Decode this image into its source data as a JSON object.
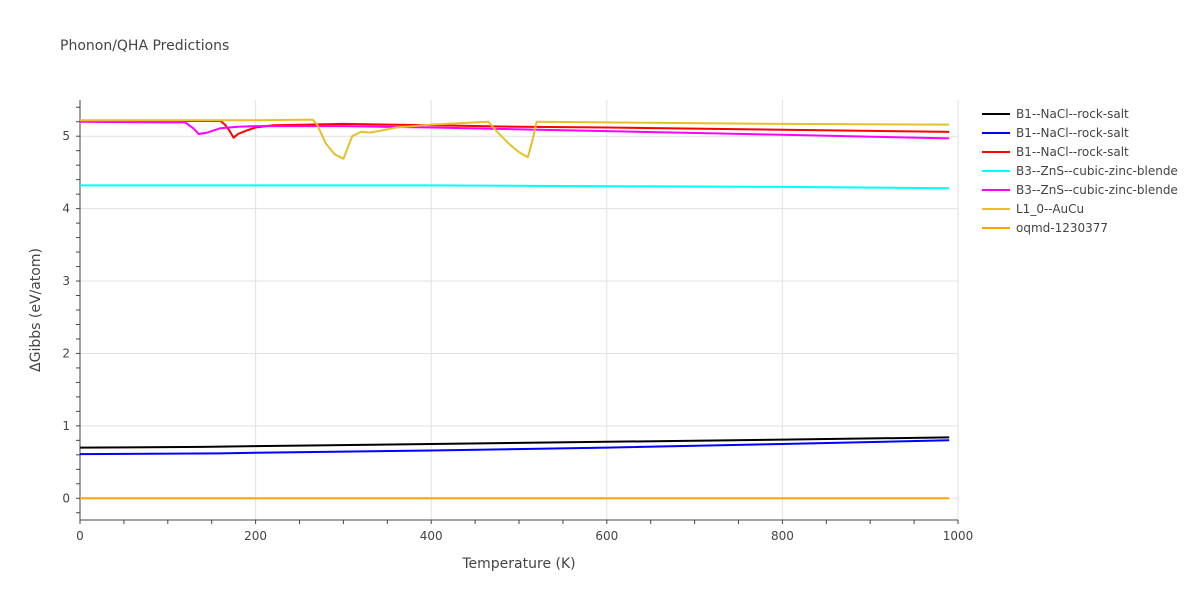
{
  "chart_data": {
    "type": "line",
    "title": "Phonon/QHA Predictions",
    "xlabel": "Temperature (K)",
    "ylabel": "ΔGibbs (eV/atom)",
    "xlim": [
      0,
      1000
    ],
    "ylim": [
      -0.3,
      5.5
    ],
    "xticks": [
      0,
      200,
      400,
      600,
      800,
      1000
    ],
    "yticks": [
      0,
      1,
      2,
      3,
      4,
      5
    ],
    "grid": true,
    "legend_position": "right",
    "series": [
      {
        "name": "B1--NaCl--rock-salt",
        "color": "#000000",
        "x": [
          0,
          140,
          200,
          400,
          600,
          800,
          990
        ],
        "y": [
          0.7,
          0.71,
          0.72,
          0.75,
          0.78,
          0.81,
          0.84
        ]
      },
      {
        "name": "B1--NaCl--rock-salt",
        "color": "#0000ff",
        "x": [
          0,
          160,
          200,
          400,
          600,
          800,
          990
        ],
        "y": [
          0.61,
          0.62,
          0.63,
          0.66,
          0.7,
          0.75,
          0.8
        ]
      },
      {
        "name": "B1--NaCl--rock-salt",
        "color": "#ff0000",
        "x": [
          0,
          120,
          160,
          165,
          170,
          175,
          180,
          190,
          200,
          220,
          260,
          300,
          400,
          500,
          600,
          800,
          990
        ],
        "y": [
          5.21,
          5.21,
          5.21,
          5.16,
          5.08,
          4.98,
          5.03,
          5.08,
          5.12,
          5.15,
          5.16,
          5.17,
          5.15,
          5.13,
          5.12,
          5.09,
          5.06
        ]
      },
      {
        "name": "B3--ZnS--cubic-zinc-blende",
        "color": "#00ffff",
        "x": [
          0,
          200,
          400,
          600,
          800,
          990
        ],
        "y": [
          4.32,
          4.32,
          4.32,
          4.31,
          4.3,
          4.28
        ]
      },
      {
        "name": "B3--ZnS--cubic-zinc-blende",
        "color": "#ff00ff",
        "x": [
          0,
          100,
          120,
          130,
          135,
          145,
          160,
          180,
          200,
          260,
          300,
          400,
          600,
          800,
          990
        ],
        "y": [
          5.2,
          5.19,
          5.19,
          5.1,
          5.03,
          5.05,
          5.11,
          5.13,
          5.14,
          5.14,
          5.14,
          5.12,
          5.07,
          5.02,
          4.97
        ]
      },
      {
        "name": "L1_0--AuCu",
        "color": "#e6c029",
        "x": [
          0,
          100,
          200,
          265,
          270,
          280,
          290,
          300,
          310,
          320,
          330,
          340,
          360,
          400,
          465,
          470,
          480,
          490,
          500,
          510,
          515,
          520,
          600,
          800,
          990
        ],
        "y": [
          5.22,
          5.22,
          5.22,
          5.23,
          5.16,
          4.9,
          4.75,
          4.69,
          5.0,
          5.06,
          5.05,
          5.07,
          5.12,
          5.16,
          5.2,
          5.13,
          5.0,
          4.88,
          4.78,
          4.71,
          4.93,
          5.2,
          5.19,
          5.17,
          5.16
        ]
      },
      {
        "name": "oqmd-1230377",
        "color": "#ffa500",
        "x": [
          0,
          200,
          400,
          600,
          800,
          990
        ],
        "y": [
          0.0,
          0.0,
          0.0,
          0.0,
          0.0,
          0.0
        ]
      }
    ]
  }
}
